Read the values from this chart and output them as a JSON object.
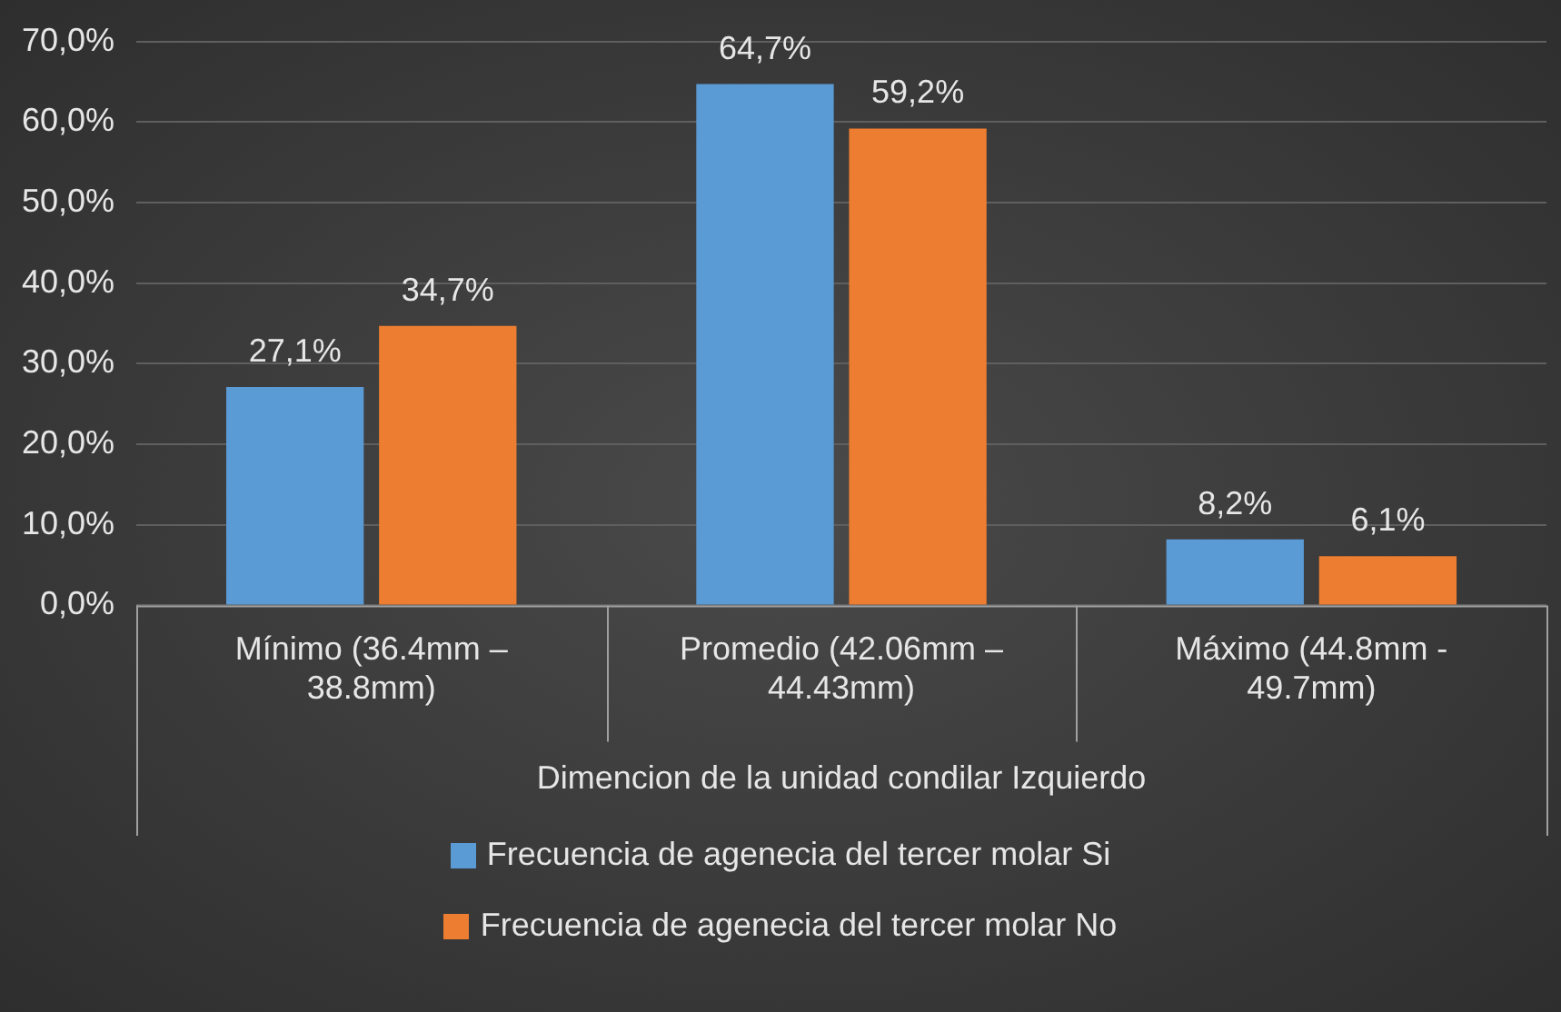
{
  "chart_data": {
    "type": "bar",
    "xlabel": "Dimencion de la unidad condilar Izquierdo",
    "categories": [
      "Mínimo (36.4mm – 38.8mm)",
      "Promedio (42.06mm – 44.43mm)",
      "Máximo (44.8mm - 49.7mm)"
    ],
    "series": [
      {
        "name": "Frecuencia de agenecia del tercer molar Si",
        "color": "#5b9bd5",
        "values": [
          27.1,
          64.7,
          8.2
        ],
        "value_labels": [
          "27,1%",
          "64,7%",
          "8,2%"
        ]
      },
      {
        "name": "Frecuencia de agenecia del tercer molar No",
        "color": "#ed7d31",
        "values": [
          34.7,
          59.2,
          6.1
        ],
        "value_labels": [
          "34,7%",
          "59,2%",
          "6,1%"
        ]
      }
    ],
    "ylim": [
      0,
      70
    ],
    "yticks": [
      {
        "value": 0,
        "label": "0,0%"
      },
      {
        "value": 10,
        "label": "10,0%"
      },
      {
        "value": 20,
        "label": "20,0%"
      },
      {
        "value": 30,
        "label": "30,0%"
      },
      {
        "value": 40,
        "label": "40,0%"
      },
      {
        "value": 50,
        "label": "50,0%"
      },
      {
        "value": 60,
        "label": "60,0%"
      },
      {
        "value": 70,
        "label": "70,0%"
      }
    ],
    "grid": "y",
    "legend": "bottom"
  }
}
